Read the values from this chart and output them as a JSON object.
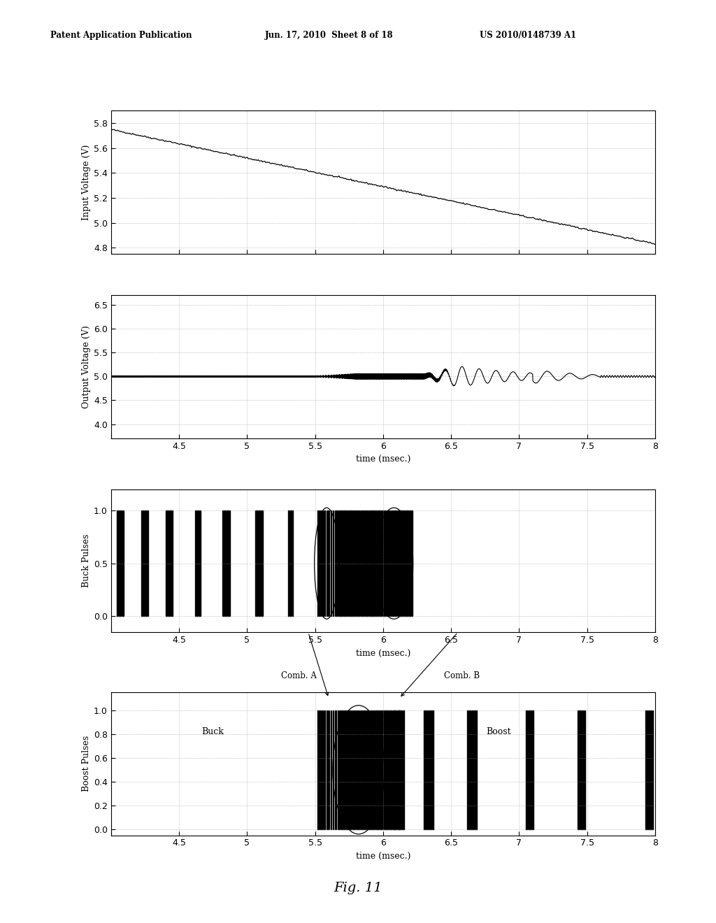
{
  "header_left": "Patent Application Publication",
  "header_mid": "Jun. 17, 2010  Sheet 8 of 18",
  "header_right": "US 2010/0148739 A1",
  "fig_label": "Fig. 11",
  "xlim": [
    4.0,
    8.0
  ],
  "xticks": [
    4.0,
    4.5,
    5.0,
    5.5,
    6.0,
    6.5,
    7.0,
    7.5,
    8.0
  ],
  "xticklabels": [
    "",
    "4.5",
    "5",
    "5.5",
    "6",
    "6.5",
    "7",
    "7.5",
    "8"
  ],
  "xlabel": "time (msec.)",
  "plot1": {
    "ylabel": "Input Voltage (V)",
    "ylim": [
      4.75,
      5.9
    ],
    "yticks": [
      4.8,
      5.0,
      5.2,
      5.4,
      5.6,
      5.8
    ],
    "x_start": 4.0,
    "x_end": 8.0,
    "y_start": 5.75,
    "y_end": 4.83
  },
  "plot2": {
    "ylabel": "Output Voltage (V)",
    "ylim": [
      3.7,
      6.7
    ],
    "yticks": [
      4.0,
      4.5,
      5.0,
      5.5,
      6.0,
      6.5
    ],
    "base_voltage": 5.0
  },
  "plot3": {
    "ylabel": "Buck Pulses",
    "ylim": [
      -0.15,
      1.2
    ],
    "yticks": [
      0.0,
      0.5,
      1.0
    ],
    "comb_a_label": "Comb. A",
    "comb_b_label": "Comb. B"
  },
  "plot4": {
    "ylabel": "Boost Pulses",
    "ylim": [
      -0.05,
      1.15
    ],
    "yticks": [
      0.0,
      0.2,
      0.4,
      0.6,
      0.8,
      1.0
    ],
    "buck_label": "Buck",
    "boost_label": "Boost"
  },
  "bg_color": "#ffffff",
  "line_color": "#000000",
  "grid_color": "#999999",
  "buck_pulses_regular": [
    [
      4.04,
      0.055
    ],
    [
      4.22,
      0.055
    ],
    [
      4.4,
      0.055
    ],
    [
      4.62,
      0.04
    ],
    [
      4.82,
      0.055
    ],
    [
      5.06,
      0.055
    ],
    [
      5.3,
      0.04
    ]
  ],
  "buck_pulses_dense": [
    [
      5.52,
      0.008
    ],
    [
      5.535,
      0.008
    ],
    [
      5.55,
      0.008
    ],
    [
      5.565,
      0.008
    ],
    [
      5.582,
      0.008
    ],
    [
      5.597,
      0.008
    ],
    [
      5.614,
      0.008
    ],
    [
      5.63,
      0.008
    ],
    [
      5.648,
      0.012
    ],
    [
      5.666,
      0.014
    ],
    [
      5.683,
      0.016
    ],
    [
      5.7,
      0.018
    ],
    [
      5.72,
      0.02
    ],
    [
      5.745,
      0.022
    ],
    [
      5.772,
      0.024
    ],
    [
      5.8,
      0.026
    ],
    [
      5.83,
      0.028
    ],
    [
      5.862,
      0.028
    ],
    [
      5.894,
      0.028
    ],
    [
      5.926,
      0.028
    ],
    [
      5.958,
      0.028
    ],
    [
      5.99,
      0.028
    ],
    [
      6.02,
      0.028
    ],
    [
      6.05,
      0.028
    ],
    [
      6.08,
      0.028
    ],
    [
      6.11,
      0.028
    ],
    [
      6.14,
      0.028
    ],
    [
      6.17,
      0.025
    ],
    [
      6.195,
      0.022
    ]
  ],
  "boost_pulses_dense": [
    [
      5.52,
      0.007
    ],
    [
      5.535,
      0.007
    ],
    [
      5.55,
      0.007
    ],
    [
      5.565,
      0.007
    ],
    [
      5.582,
      0.007
    ],
    [
      5.597,
      0.007
    ],
    [
      5.614,
      0.007
    ],
    [
      5.63,
      0.007
    ],
    [
      5.648,
      0.01
    ],
    [
      5.666,
      0.012
    ],
    [
      5.683,
      0.014
    ],
    [
      5.7,
      0.016
    ],
    [
      5.72,
      0.018
    ],
    [
      5.745,
      0.02
    ],
    [
      5.772,
      0.022
    ],
    [
      5.8,
      0.024
    ],
    [
      5.83,
      0.026
    ],
    [
      5.862,
      0.028
    ],
    [
      5.894,
      0.03
    ],
    [
      5.926,
      0.032
    ],
    [
      5.958,
      0.034
    ],
    [
      5.99,
      0.036
    ],
    [
      6.02,
      0.038
    ],
    [
      6.05,
      0.04
    ],
    [
      6.08,
      0.042
    ],
    [
      6.11,
      0.044
    ]
  ],
  "boost_pulses_boost": [
    [
      6.3,
      0.07
    ],
    [
      6.62,
      0.07
    ],
    [
      7.05,
      0.055
    ],
    [
      7.43,
      0.055
    ],
    [
      7.93,
      0.055
    ]
  ]
}
